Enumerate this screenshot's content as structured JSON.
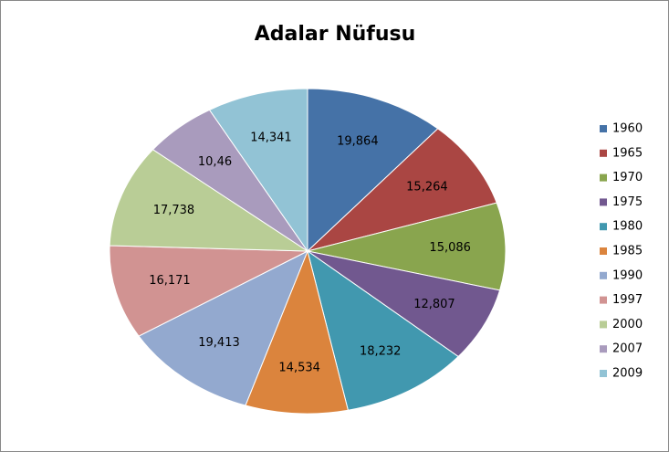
{
  "chart_data": {
    "type": "pie",
    "title": "Adalar Nüfusu",
    "categories": [
      "1960",
      "1965",
      "1970",
      "1975",
      "1980",
      "1985",
      "1990",
      "1997",
      "2000",
      "2007",
      "2009"
    ],
    "values": [
      19.864,
      15.264,
      15.086,
      12.807,
      18.232,
      14.534,
      19.413,
      16.171,
      17.738,
      10.46,
      14.341
    ],
    "value_labels": [
      "19,864",
      "15,264",
      "15,086",
      "12,807",
      "18,232",
      "14,534",
      "19,413",
      "16,171",
      "17,738",
      "10,46",
      "14,341"
    ],
    "colors": [
      "#4572a7",
      "#aa4643",
      "#89a54e",
      "#71588f",
      "#4198af",
      "#db843d",
      "#93a9cf",
      "#d19392",
      "#b9cd96",
      "#a99bbd",
      "#92c3d5"
    ],
    "legend": "right"
  }
}
